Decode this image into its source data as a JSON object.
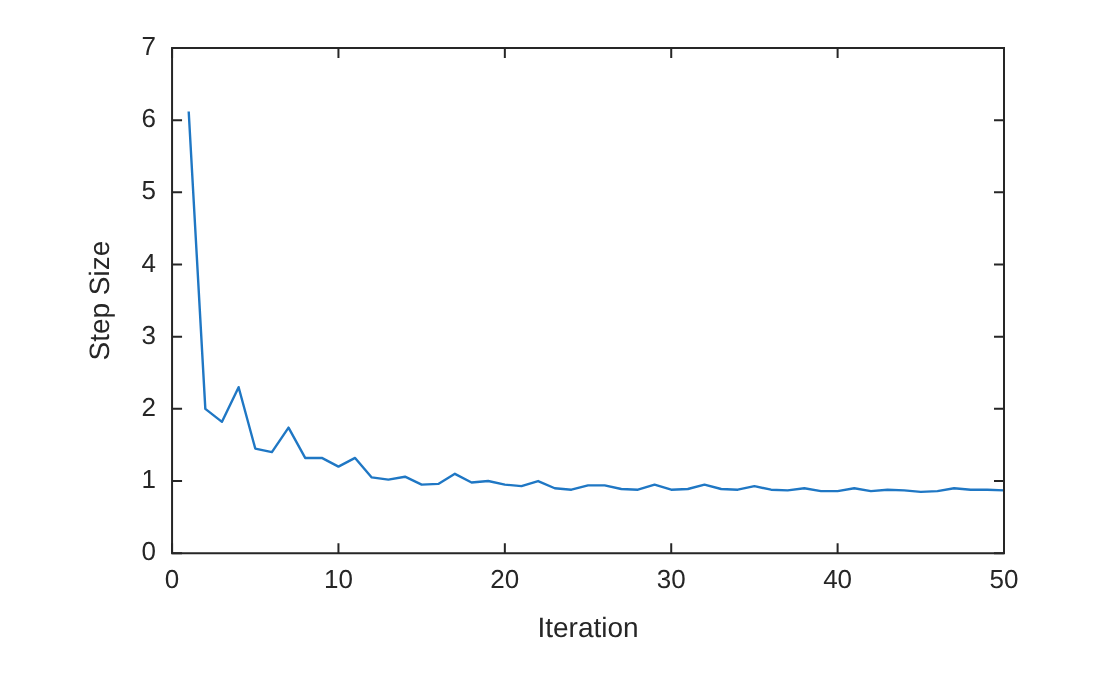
{
  "chart_data": {
    "type": "line",
    "xlabel": "Iteration",
    "ylabel": "Step Size",
    "x": [
      1,
      2,
      3,
      4,
      5,
      6,
      7,
      8,
      9,
      10,
      11,
      12,
      13,
      14,
      15,
      16,
      17,
      18,
      19,
      20,
      21,
      22,
      23,
      24,
      25,
      26,
      27,
      28,
      29,
      30,
      31,
      32,
      33,
      34,
      35,
      36,
      37,
      38,
      39,
      40,
      41,
      42,
      43,
      44,
      45,
      46,
      47,
      48,
      49,
      50
    ],
    "series": [
      {
        "color": "#1f77c4",
        "values": [
          6.12,
          2.0,
          1.82,
          2.3,
          1.45,
          1.4,
          1.74,
          1.32,
          1.32,
          1.2,
          1.32,
          1.05,
          1.02,
          1.06,
          0.95,
          0.96,
          1.1,
          0.98,
          1.0,
          0.95,
          0.93,
          1.0,
          0.9,
          0.88,
          0.94,
          0.94,
          0.89,
          0.88,
          0.95,
          0.88,
          0.89,
          0.95,
          0.89,
          0.88,
          0.93,
          0.88,
          0.87,
          0.9,
          0.86,
          0.86,
          0.9,
          0.86,
          0.88,
          0.87,
          0.85,
          0.86,
          0.9,
          0.88,
          0.88,
          0.87
        ]
      }
    ],
    "xlim": [
      0,
      50
    ],
    "xticks": [
      0,
      10,
      20,
      30,
      40,
      50
    ],
    "ylim": [
      0,
      7
    ],
    "yticks": [
      0,
      1,
      2,
      3,
      4,
      5,
      6,
      7
    ],
    "grid": false,
    "legend": false,
    "marker": "none",
    "line_style": "solid"
  }
}
